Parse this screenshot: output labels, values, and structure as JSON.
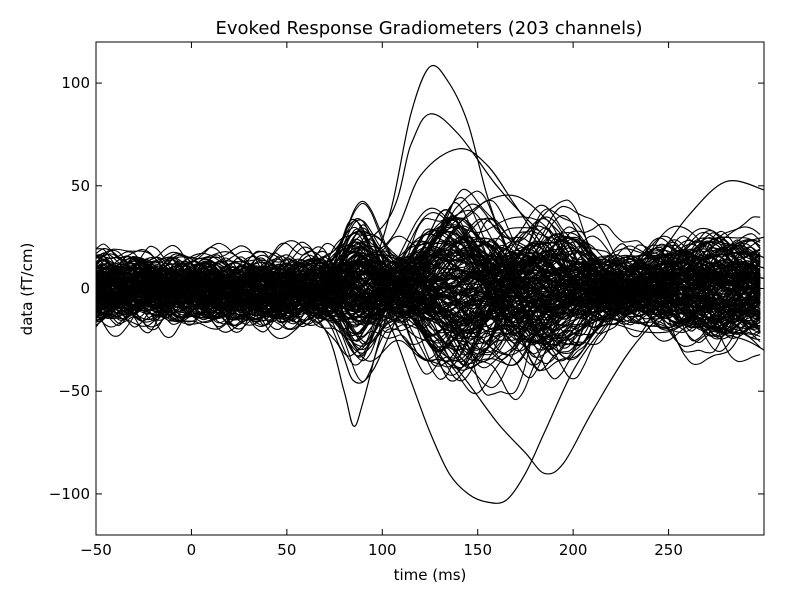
{
  "chart_data": {
    "type": "line",
    "title": "Evoked Response Gradiometers (203 channels)",
    "xlabel": "time (ms)",
    "ylabel": "data (fT/cm)",
    "xlim": [
      -50,
      300
    ],
    "ylim": [
      -120,
      120
    ],
    "xticks": [
      -50,
      0,
      50,
      100,
      150,
      200,
      250
    ],
    "yticks": [
      -100,
      -50,
      0,
      50,
      100
    ],
    "xtick_labels": [
      "−50",
      "0",
      "50",
      "100",
      "150",
      "200",
      "250"
    ],
    "ytick_labels": [
      "−100",
      "−50",
      "0",
      "50",
      "100"
    ],
    "grid": false,
    "line_color": "#000000",
    "channel_count": 203,
    "series": [
      {
        "x": [
          -50,
          0,
          50,
          75,
          85,
          95,
          105,
          115,
          125,
          135,
          145,
          155,
          165,
          175,
          185,
          200,
          215,
          230,
          250,
          270,
          290,
          300
        ],
        "values": [
          5,
          3,
          2,
          5,
          8,
          12,
          40,
          85,
          108,
          100,
          80,
          45,
          20,
          10,
          5,
          2,
          3,
          8,
          12,
          15,
          18,
          15
        ]
      },
      {
        "x": [
          -50,
          0,
          50,
          75,
          85,
          95,
          105,
          115,
          125,
          135,
          145,
          155,
          165,
          175,
          185,
          200,
          215,
          230,
          250,
          270,
          290,
          300
        ],
        "values": [
          -3,
          -5,
          -4,
          -10,
          -15,
          -8,
          -20,
          -45,
          -70,
          -90,
          -100,
          -104,
          -103,
          -90,
          -70,
          -40,
          -20,
          -5,
          5,
          10,
          12,
          10
        ]
      },
      {
        "x": [
          -50,
          0,
          50,
          70,
          80,
          85,
          90,
          100,
          110,
          130,
          150,
          170,
          190,
          210,
          230,
          250,
          270,
          290,
          300
        ],
        "values": [
          2,
          0,
          -5,
          -20,
          -50,
          -67,
          -55,
          -20,
          5,
          10,
          5,
          -10,
          -20,
          -10,
          0,
          5,
          8,
          6,
          5
        ]
      },
      {
        "x": [
          -50,
          0,
          50,
          100,
          120,
          140,
          155,
          170,
          185,
          200,
          220,
          240,
          260,
          280,
          300
        ],
        "values": [
          10,
          8,
          5,
          20,
          55,
          68,
          60,
          40,
          20,
          5,
          -5,
          10,
          35,
          52,
          48
        ]
      },
      {
        "x": [
          -50,
          0,
          50,
          100,
          120,
          140,
          160,
          175,
          185,
          195,
          210,
          230,
          250,
          270,
          290,
          300
        ],
        "values": [
          -5,
          -6,
          -8,
          -10,
          -20,
          -40,
          -65,
          -80,
          -90,
          -85,
          -60,
          -30,
          -10,
          0,
          5,
          5
        ]
      },
      {
        "x": [
          -50,
          0,
          50,
          100,
          115,
          125,
          140,
          160,
          180,
          200,
          220,
          240,
          260,
          280,
          300
        ],
        "values": [
          8,
          5,
          3,
          30,
          70,
          85,
          75,
          50,
          30,
          15,
          5,
          0,
          10,
          20,
          25
        ]
      },
      {
        "x": [
          -50,
          0,
          50,
          75,
          85,
          95,
          110,
          130,
          150,
          170,
          190,
          210,
          230,
          250,
          270,
          290,
          300
        ],
        "values": [
          -2,
          -3,
          -8,
          -25,
          -45,
          -40,
          -10,
          20,
          40,
          45,
          30,
          10,
          -5,
          -15,
          -20,
          -25,
          -30
        ]
      }
    ]
  }
}
